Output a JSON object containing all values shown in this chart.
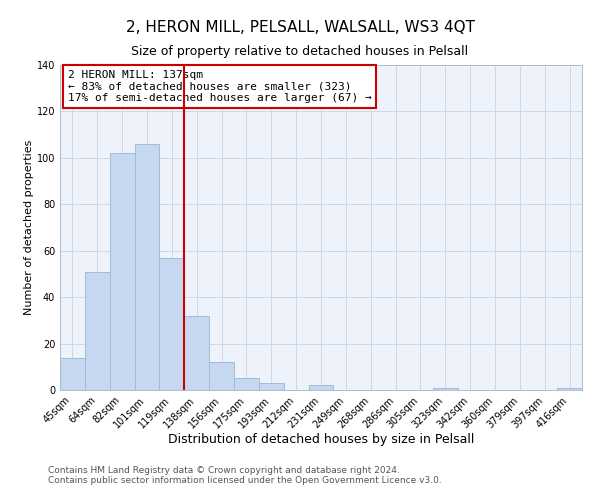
{
  "title": "2, HERON MILL, PELSALL, WALSALL, WS3 4QT",
  "subtitle": "Size of property relative to detached houses in Pelsall",
  "xlabel": "Distribution of detached houses by size in Pelsall",
  "ylabel": "Number of detached properties",
  "bar_labels": [
    "45sqm",
    "64sqm",
    "82sqm",
    "101sqm",
    "119sqm",
    "138sqm",
    "156sqm",
    "175sqm",
    "193sqm",
    "212sqm",
    "231sqm",
    "249sqm",
    "268sqm",
    "286sqm",
    "305sqm",
    "323sqm",
    "342sqm",
    "360sqm",
    "379sqm",
    "397sqm",
    "416sqm"
  ],
  "bar_values": [
    14,
    51,
    102,
    106,
    57,
    32,
    12,
    5,
    3,
    0,
    2,
    0,
    0,
    0,
    0,
    1,
    0,
    0,
    0,
    0,
    1
  ],
  "bar_color": "#c5d8f0",
  "bar_edgecolor": "#a0bcd8",
  "vline_color": "#cc0000",
  "annotation_box_text": "2 HERON MILL: 137sqm\n← 83% of detached houses are smaller (323)\n17% of semi-detached houses are larger (67) →",
  "box_edgecolor": "#cc0000",
  "ylim": [
    0,
    140
  ],
  "yticks": [
    0,
    20,
    40,
    60,
    80,
    100,
    120,
    140
  ],
  "grid_color": "#d0d8e8",
  "bg_color": "#eef2fa",
  "footer_text": "Contains HM Land Registry data © Crown copyright and database right 2024.\nContains public sector information licensed under the Open Government Licence v3.0.",
  "title_fontsize": 11,
  "subtitle_fontsize": 9,
  "xlabel_fontsize": 9,
  "ylabel_fontsize": 8,
  "tick_fontsize": 7,
  "annotation_fontsize": 8,
  "footer_fontsize": 6.5
}
